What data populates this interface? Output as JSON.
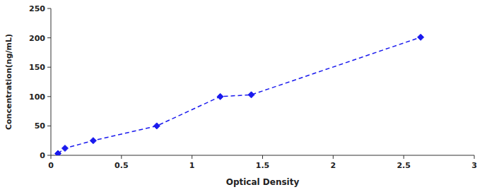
{
  "chart_data": {
    "type": "line",
    "x": [
      0.05,
      0.1,
      0.3,
      0.75,
      1.2,
      1.42,
      2.62
    ],
    "values": [
      3,
      12,
      25,
      50,
      100,
      103,
      201
    ],
    "color": "#1a1aee",
    "marker": "diamond",
    "line_style": "dashed",
    "xlabel": "Optical Density",
    "ylabel": "Concentration(ng/mL)",
    "xlim": [
      0,
      3
    ],
    "ylim": [
      0,
      250
    ],
    "xticks": [
      0,
      0.5,
      1,
      1.5,
      2,
      2.5,
      3
    ],
    "yticks": [
      0,
      50,
      100,
      150,
      200,
      250
    ],
    "grid": false
  }
}
